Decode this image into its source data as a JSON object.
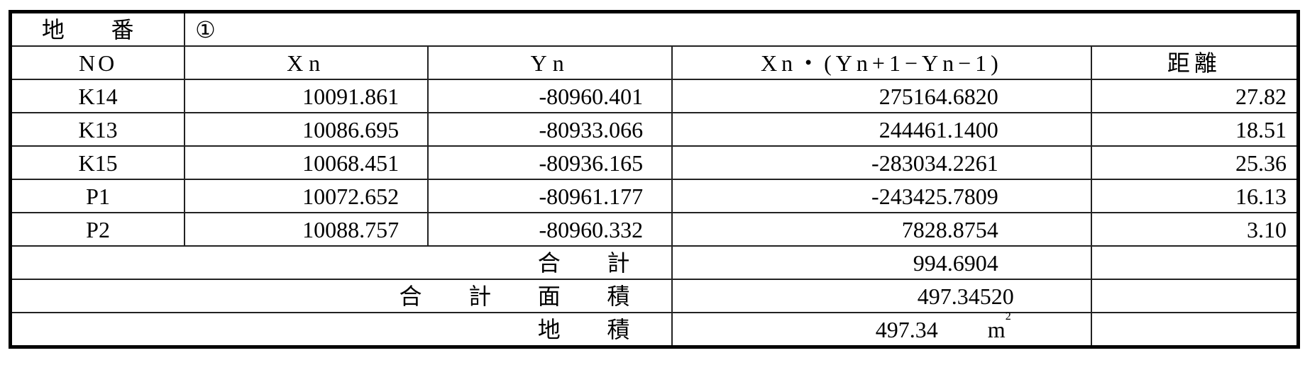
{
  "parcel": {
    "label": "地 番",
    "value": "①"
  },
  "headers": {
    "no": "NO",
    "xn": "Xn",
    "yn": "Yn",
    "product": "Xn・(Yn+1−Yn−1)",
    "distance": "距離"
  },
  "rows": [
    {
      "no": "K14",
      "xn": "10091.861",
      "yn": "-80960.401",
      "product": "275164.6820",
      "distance": "27.82"
    },
    {
      "no": "K13",
      "xn": "10086.695",
      "yn": "-80933.066",
      "product": "244461.1400",
      "distance": "18.51"
    },
    {
      "no": "K15",
      "xn": "10068.451",
      "yn": "-80936.165",
      "product": "-283034.2261",
      "distance": "25.36"
    },
    {
      "no": "P1",
      "xn": "10072.652",
      "yn": "-80961.177",
      "product": "-243425.7809",
      "distance": "16.13"
    },
    {
      "no": "P2",
      "xn": "10088.757",
      "yn": "-80960.332",
      "product": "7828.8754",
      "distance": "3.10"
    }
  ],
  "totals": {
    "sum_label": "合 計",
    "sum_value": "994.6904",
    "area_total_label": "合 計 面 積",
    "area_total_value": "497.34520",
    "area_label": "地 積",
    "area_value": "497.34",
    "area_unit": "m",
    "area_unit_sup": "2"
  }
}
